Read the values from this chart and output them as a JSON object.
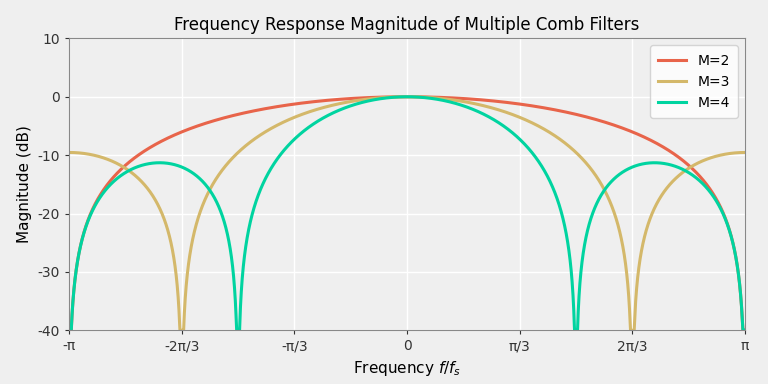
{
  "title": "Frequency Response Magnitude of Multiple Comb Filters",
  "xlabel": "Frequency $f/f_s$",
  "ylabel": "Magnitude (dB)",
  "ylim": [
    -40,
    10
  ],
  "series": [
    {
      "M": 2,
      "color": "#E8644A",
      "linewidth": 2.2,
      "label": "M=2"
    },
    {
      "M": 3,
      "color": "#D4B86A",
      "linewidth": 2.2,
      "label": "M=3"
    },
    {
      "M": 4,
      "color": "#00D4A0",
      "linewidth": 2.2,
      "label": "M=4"
    }
  ],
  "yticks": [
    10,
    0,
    -10,
    -20,
    -30,
    -40
  ],
  "xtick_labels": [
    "-π",
    "-2π/3",
    "-π/3",
    "0",
    "π/3",
    "2π/3",
    "π"
  ],
  "xtick_values_factor": [
    -1.0,
    -0.6667,
    -0.3333,
    0.0,
    0.3333,
    0.6667,
    1.0
  ],
  "background_color": "#EFEFEF",
  "grid_color": "#FFFFFF",
  "legend_loc": "upper right",
  "figsize": [
    7.68,
    3.84
  ],
  "dpi": 100
}
